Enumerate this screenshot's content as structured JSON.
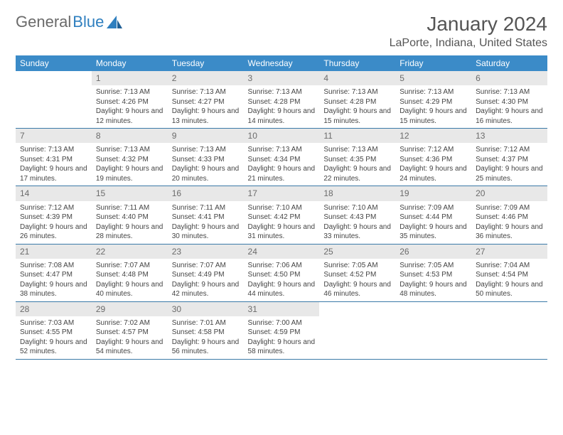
{
  "brand": {
    "word1": "General",
    "word2": "Blue"
  },
  "title": "January 2024",
  "location": "LaPorte, Indiana, United States",
  "colors": {
    "header_bg": "#3b8bc8",
    "header_text": "#ffffff",
    "daynum_bg": "#e8e8e8",
    "daynum_text": "#6b6b6b",
    "cell_border": "#3b7aa8",
    "body_text": "#444444",
    "title_text": "#555555",
    "logo_gray": "#6a6a6a",
    "logo_blue": "#2f7fbf"
  },
  "typography": {
    "title_fontsize": 28,
    "location_fontsize": 16,
    "header_fontsize": 12,
    "daynum_fontsize": 12,
    "body_fontsize": 10
  },
  "weekdays": [
    "Sunday",
    "Monday",
    "Tuesday",
    "Wednesday",
    "Thursday",
    "Friday",
    "Saturday"
  ],
  "first_weekday_index": 1,
  "days": [
    {
      "n": 1,
      "sunrise": "7:13 AM",
      "sunset": "4:26 PM",
      "daylight": "9 hours and 12 minutes."
    },
    {
      "n": 2,
      "sunrise": "7:13 AM",
      "sunset": "4:27 PM",
      "daylight": "9 hours and 13 minutes."
    },
    {
      "n": 3,
      "sunrise": "7:13 AM",
      "sunset": "4:28 PM",
      "daylight": "9 hours and 14 minutes."
    },
    {
      "n": 4,
      "sunrise": "7:13 AM",
      "sunset": "4:28 PM",
      "daylight": "9 hours and 15 minutes."
    },
    {
      "n": 5,
      "sunrise": "7:13 AM",
      "sunset": "4:29 PM",
      "daylight": "9 hours and 15 minutes."
    },
    {
      "n": 6,
      "sunrise": "7:13 AM",
      "sunset": "4:30 PM",
      "daylight": "9 hours and 16 minutes."
    },
    {
      "n": 7,
      "sunrise": "7:13 AM",
      "sunset": "4:31 PM",
      "daylight": "9 hours and 17 minutes."
    },
    {
      "n": 8,
      "sunrise": "7:13 AM",
      "sunset": "4:32 PM",
      "daylight": "9 hours and 19 minutes."
    },
    {
      "n": 9,
      "sunrise": "7:13 AM",
      "sunset": "4:33 PM",
      "daylight": "9 hours and 20 minutes."
    },
    {
      "n": 10,
      "sunrise": "7:13 AM",
      "sunset": "4:34 PM",
      "daylight": "9 hours and 21 minutes."
    },
    {
      "n": 11,
      "sunrise": "7:13 AM",
      "sunset": "4:35 PM",
      "daylight": "9 hours and 22 minutes."
    },
    {
      "n": 12,
      "sunrise": "7:12 AM",
      "sunset": "4:36 PM",
      "daylight": "9 hours and 24 minutes."
    },
    {
      "n": 13,
      "sunrise": "7:12 AM",
      "sunset": "4:37 PM",
      "daylight": "9 hours and 25 minutes."
    },
    {
      "n": 14,
      "sunrise": "7:12 AM",
      "sunset": "4:39 PM",
      "daylight": "9 hours and 26 minutes."
    },
    {
      "n": 15,
      "sunrise": "7:11 AM",
      "sunset": "4:40 PM",
      "daylight": "9 hours and 28 minutes."
    },
    {
      "n": 16,
      "sunrise": "7:11 AM",
      "sunset": "4:41 PM",
      "daylight": "9 hours and 30 minutes."
    },
    {
      "n": 17,
      "sunrise": "7:10 AM",
      "sunset": "4:42 PM",
      "daylight": "9 hours and 31 minutes."
    },
    {
      "n": 18,
      "sunrise": "7:10 AM",
      "sunset": "4:43 PM",
      "daylight": "9 hours and 33 minutes."
    },
    {
      "n": 19,
      "sunrise": "7:09 AM",
      "sunset": "4:44 PM",
      "daylight": "9 hours and 35 minutes."
    },
    {
      "n": 20,
      "sunrise": "7:09 AM",
      "sunset": "4:46 PM",
      "daylight": "9 hours and 36 minutes."
    },
    {
      "n": 21,
      "sunrise": "7:08 AM",
      "sunset": "4:47 PM",
      "daylight": "9 hours and 38 minutes."
    },
    {
      "n": 22,
      "sunrise": "7:07 AM",
      "sunset": "4:48 PM",
      "daylight": "9 hours and 40 minutes."
    },
    {
      "n": 23,
      "sunrise": "7:07 AM",
      "sunset": "4:49 PM",
      "daylight": "9 hours and 42 minutes."
    },
    {
      "n": 24,
      "sunrise": "7:06 AM",
      "sunset": "4:50 PM",
      "daylight": "9 hours and 44 minutes."
    },
    {
      "n": 25,
      "sunrise": "7:05 AM",
      "sunset": "4:52 PM",
      "daylight": "9 hours and 46 minutes."
    },
    {
      "n": 26,
      "sunrise": "7:05 AM",
      "sunset": "4:53 PM",
      "daylight": "9 hours and 48 minutes."
    },
    {
      "n": 27,
      "sunrise": "7:04 AM",
      "sunset": "4:54 PM",
      "daylight": "9 hours and 50 minutes."
    },
    {
      "n": 28,
      "sunrise": "7:03 AM",
      "sunset": "4:55 PM",
      "daylight": "9 hours and 52 minutes."
    },
    {
      "n": 29,
      "sunrise": "7:02 AM",
      "sunset": "4:57 PM",
      "daylight": "9 hours and 54 minutes."
    },
    {
      "n": 30,
      "sunrise": "7:01 AM",
      "sunset": "4:58 PM",
      "daylight": "9 hours and 56 minutes."
    },
    {
      "n": 31,
      "sunrise": "7:00 AM",
      "sunset": "4:59 PM",
      "daylight": "9 hours and 58 minutes."
    }
  ],
  "labels": {
    "sunrise": "Sunrise: ",
    "sunset": "Sunset: ",
    "daylight": "Daylight: "
  }
}
